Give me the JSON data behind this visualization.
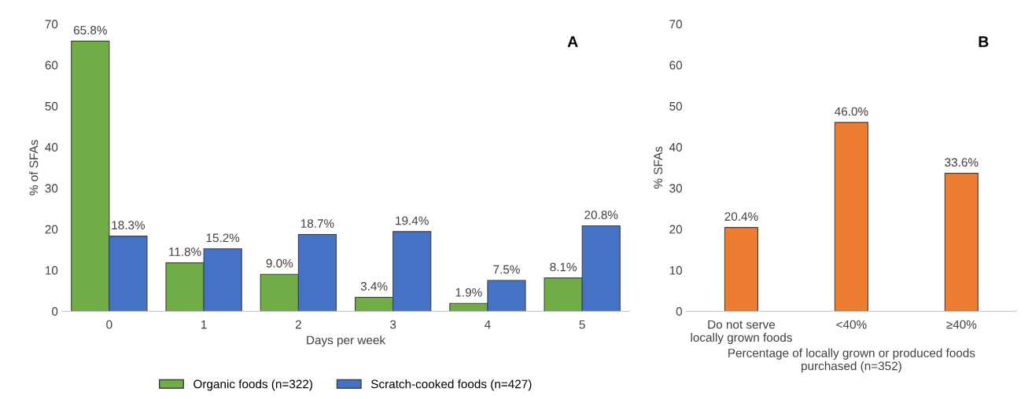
{
  "chart_data": [
    {
      "type": "bar",
      "xlabel": "Days per week",
      "ylabel": "% of SFAs",
      "categories": [
        "0",
        "1",
        "2",
        "3",
        "4",
        "5"
      ],
      "series": [
        {
          "name": "Organic foods (n=322)",
          "color": "#70ad47",
          "values": [
            65.8,
            11.8,
            9.0,
            3.4,
            1.9,
            8.1
          ],
          "value_labels": [
            "65.8%",
            "11.8%",
            "9.0%",
            "3.4%",
            "1.9%",
            "8.1%"
          ]
        },
        {
          "name": "Scratch-cooked foods (n=427)",
          "color": "#4472c4",
          "values": [
            18.3,
            15.2,
            18.7,
            19.4,
            7.5,
            20.8
          ],
          "value_labels": [
            "18.3%",
            "15.2%",
            "18.7%",
            "19.4%",
            "7.5%",
            "20.8%"
          ]
        }
      ],
      "ylim": [
        0,
        70
      ],
      "yticks": [
        0,
        10,
        20,
        30,
        40,
        50,
        60,
        70
      ],
      "grid": false,
      "legend": "bottom",
      "annotations": [
        "A"
      ]
    },
    {
      "type": "bar",
      "xlabel": "Percentage of locally grown or produced foods\npurchased (n=352)",
      "ylabel": "% SFAs",
      "categories": [
        "Do not serve\nlocally grown foods",
        "<40%",
        "≥40%"
      ],
      "series": [
        {
          "color": "#ed7d31",
          "values": [
            20.4,
            46.0,
            33.6
          ],
          "value_labels": [
            "20.4%",
            "46.0%",
            "33.6%"
          ]
        }
      ],
      "ylim": [
        0,
        70
      ],
      "yticks": [
        0,
        10,
        20,
        30,
        40,
        50,
        60,
        70
      ],
      "grid": false,
      "legend": false,
      "annotations": [
        "B"
      ]
    }
  ]
}
